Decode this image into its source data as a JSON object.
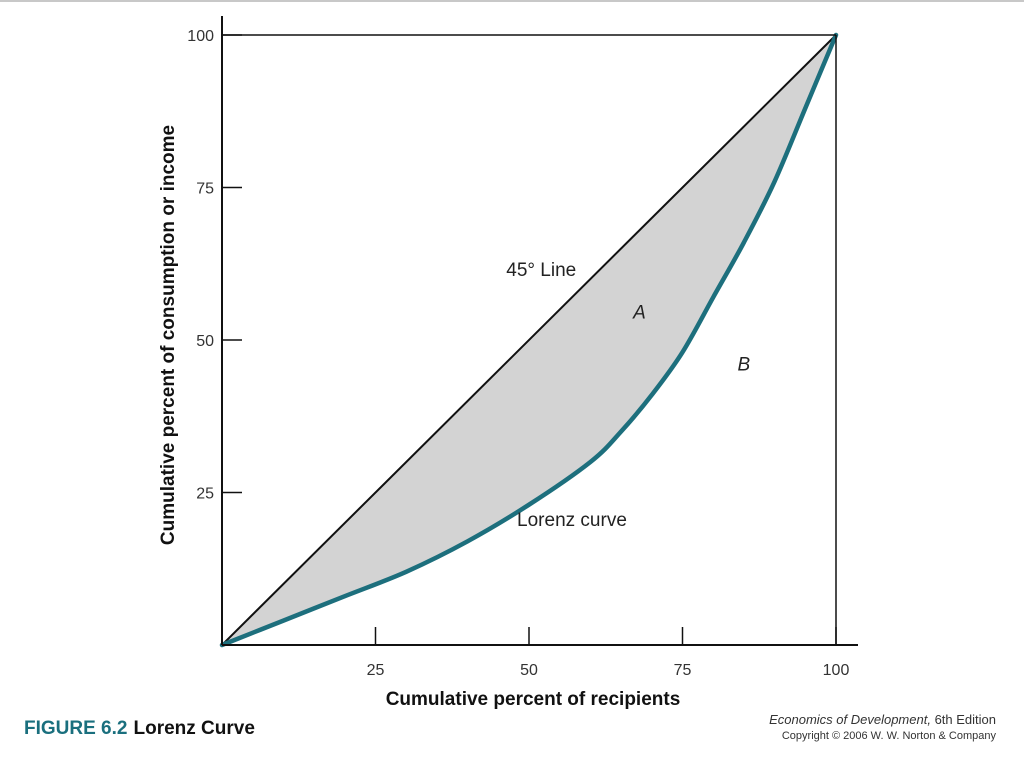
{
  "figure": {
    "number": "FIGURE 6.2",
    "title": "Lorenz Curve"
  },
  "credit": {
    "book_title": "Economics of Development,",
    "edition": "6th Edition",
    "copyright": "Copyright © 2006 W. W. Norton & Company"
  },
  "chart_data": {
    "type": "line",
    "title": "",
    "xlabel": "Cumulative percent of recipients",
    "ylabel": "Cumulative percent of consumption or income",
    "xlim": [
      0,
      100
    ],
    "ylim": [
      0,
      100
    ],
    "xticks": [
      25,
      50,
      75,
      100
    ],
    "yticks": [
      25,
      50,
      75,
      100
    ],
    "grid": false,
    "series": [
      {
        "name": "45° Line",
        "x": [
          0,
          100
        ],
        "y": [
          0,
          100
        ],
        "color": "#111111"
      },
      {
        "name": "Lorenz curve",
        "x": [
          0,
          10,
          20,
          30,
          40,
          50,
          60,
          65,
          70,
          75,
          80,
          85,
          90,
          95,
          100
        ],
        "y": [
          0,
          4,
          8,
          12,
          17,
          23,
          30,
          35,
          41,
          48,
          57,
          66,
          76,
          88,
          100
        ],
        "color": "#1d6f7d"
      }
    ],
    "annotations": [
      {
        "text": "45° Line",
        "x": 52,
        "y": 60.5
      },
      {
        "text": "A",
        "x": 68,
        "y": 53.5,
        "italic": true
      },
      {
        "text": "B",
        "x": 85,
        "y": 45,
        "italic": true
      },
      {
        "text": "Lorenz curve",
        "x": 57,
        "y": 19.5
      }
    ],
    "fill_between": {
      "color": "#d3d3d3"
    }
  }
}
